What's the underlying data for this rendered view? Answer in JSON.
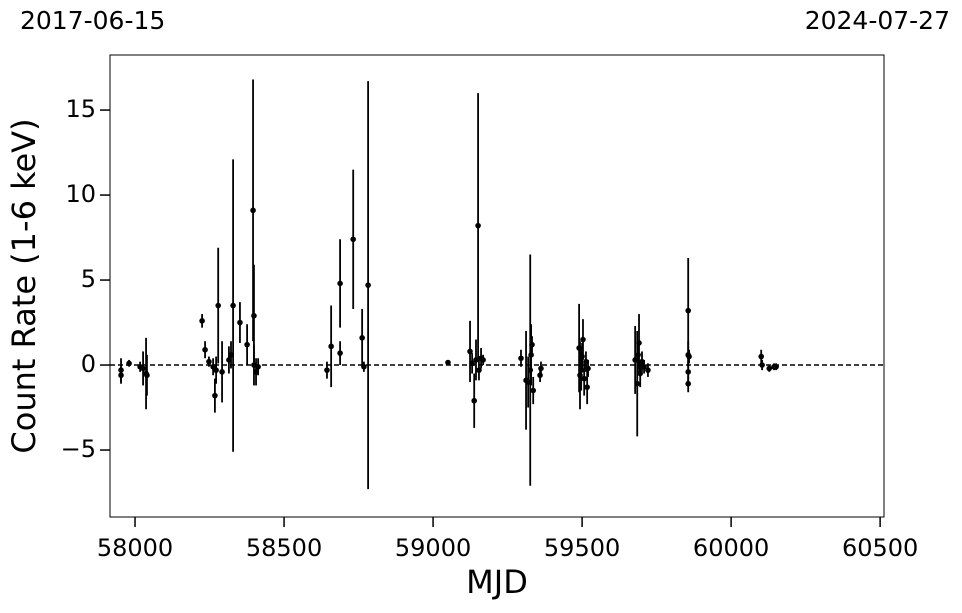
{
  "chart_data": {
    "type": "scatter",
    "annotations": [
      "2017-06-15",
      "2024-07-27"
    ],
    "x_label": "MJD",
    "y_label": "Count Rate (1-6 keV)",
    "xlim": [
      57916,
      60513
    ],
    "ylim": [
      -8.94,
      18.24
    ],
    "xticks": [
      58000,
      58500,
      59000,
      59500,
      60000,
      60500
    ],
    "yticks": [
      {
        "value": -5,
        "label": "−5"
      },
      0,
      5,
      10,
      15
    ],
    "reference_line": 0,
    "color": "#000000",
    "series": [
      {
        "x": [
          57953,
          57953,
          57980,
          58017,
          58027,
          58037,
          58040,
          58225,
          58235,
          58248,
          58262,
          58268,
          58272,
          58279,
          58292,
          58315,
          58322,
          58329,
          58352,
          58376,
          58396,
          58399,
          58399,
          58406,
          58413,
          58644,
          58658,
          58688,
          58688,
          58732,
          58762,
          58768,
          58782,
          59050,
          59124,
          59131,
          59138,
          59144,
          59151,
          59154,
          59161,
          59168,
          59295,
          59312,
          59319,
          59326,
          59329,
          59332,
          59336,
          59359,
          59362,
          59490,
          59493,
          59497,
          59500,
          59503,
          59507,
          59513,
          59517,
          59520,
          59678,
          59685,
          59688,
          59691,
          59695,
          59701,
          59708,
          59721,
          59856,
          59856,
          59856,
          59856,
          59859,
          60101,
          60104,
          60128,
          60144,
          60151
        ],
        "values": [
          -0.3,
          -0.6,
          0.1,
          -0.1,
          -0.2,
          -0.5,
          -0.6,
          2.6,
          0.9,
          0.2,
          -0.1,
          -1.8,
          -0.3,
          3.5,
          -0.4,
          0.3,
          0.6,
          3.5,
          2.5,
          1.2,
          9.1,
          2.9,
          0.0,
          -0.4,
          -0.1,
          -0.3,
          1.1,
          4.8,
          0.7,
          7.4,
          1.6,
          -0.1,
          4.7,
          0.15,
          0.8,
          0.1,
          -2.1,
          0.3,
          8.2,
          -0.3,
          0.4,
          0.3,
          0.4,
          -0.9,
          -1.0,
          -0.3,
          0.6,
          1.2,
          -1.5,
          -0.6,
          -0.2,
          1.0,
          -0.6,
          -0.3,
          0.5,
          1.5,
          -0.8,
          0.2,
          -1.3,
          -0.2,
          0.3,
          -1.1,
          0.6,
          1.3,
          -0.5,
          0.2,
          -0.1,
          -0.3,
          3.2,
          0.6,
          -0.4,
          -1.1,
          0.5,
          0.5,
          0.0,
          -0.2,
          -0.1,
          -0.1
        ],
        "errors": [
          0.7,
          0.5,
          0.2,
          0.3,
          1.0,
          2.1,
          1.2,
          0.4,
          0.5,
          0.3,
          0.5,
          1.0,
          0.8,
          3.4,
          1.8,
          0.8,
          0.8,
          8.6,
          1.2,
          1.2,
          7.7,
          3.0,
          1.2,
          0.8,
          0.5,
          0.5,
          2.4,
          2.6,
          0.7,
          4.1,
          1.7,
          0.3,
          12.0,
          0.1,
          1.8,
          0.6,
          1.6,
          1.2,
          7.8,
          0.6,
          0.6,
          0.3,
          0.5,
          2.9,
          1.5,
          6.8,
          1.8,
          0.5,
          0.8,
          0.4,
          0.4,
          2.6,
          2.0,
          1.2,
          0.8,
          1.2,
          1.0,
          0.6,
          1.0,
          0.5,
          2.0,
          3.1,
          0.8,
          1.7,
          0.8,
          0.6,
          0.4,
          0.4,
          3.1,
          0.8,
          0.6,
          0.5,
          0.4,
          0.4,
          0.3,
          0.2,
          0.2,
          0.2
        ]
      }
    ]
  }
}
